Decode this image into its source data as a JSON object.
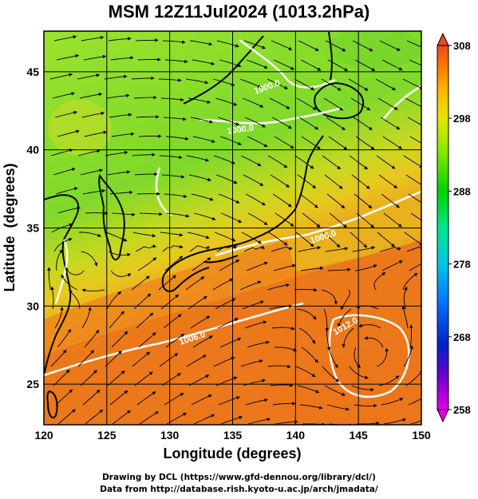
{
  "title": "MSM 12Z11Jul2024 (1013.2hPa)",
  "x_axis": {
    "label": "Longitude (degrees)",
    "range": [
      120,
      150
    ],
    "ticks": [
      "120",
      "125",
      "130",
      "135",
      "140",
      "145",
      "150"
    ]
  },
  "y_axis": {
    "label": "Latitude  (degrees)",
    "range": [
      22.4,
      47.6
    ],
    "ticks": [
      "25",
      "30",
      "35",
      "40",
      "45"
    ]
  },
  "colorbar": {
    "ticks": [
      "258",
      "268",
      "278",
      "288",
      "298",
      "308"
    ],
    "range": [
      258,
      308
    ],
    "colors": [
      "#e600e6",
      "#6e00cc",
      "#0022cc",
      "#0077ff",
      "#00c6e6",
      "#00e68a",
      "#00d200",
      "#7ee600",
      "#e6e600",
      "#ffb400",
      "#ff7a00",
      "#e84a1c"
    ]
  },
  "field_colors": {
    "cool_north": "#9ae22c",
    "green": "#7fd92a",
    "warm_band": "#e8c81e",
    "warm_south": "#ee7e1c",
    "hot_south": "#e8661a",
    "coast": "#000000",
    "isobar": "#ffffff",
    "grid": "#000000"
  },
  "isobar_labels": [
    "1000.0",
    "1000.0",
    "1006.0",
    "1006.0",
    "1012.0"
  ],
  "credits": [
    "Drawing by DCL (https://www.gfd-dennou.org/library/dcl/)",
    "Data from http://database.rish.kyoto-u.ac.jp/arch/jmadata/"
  ]
}
